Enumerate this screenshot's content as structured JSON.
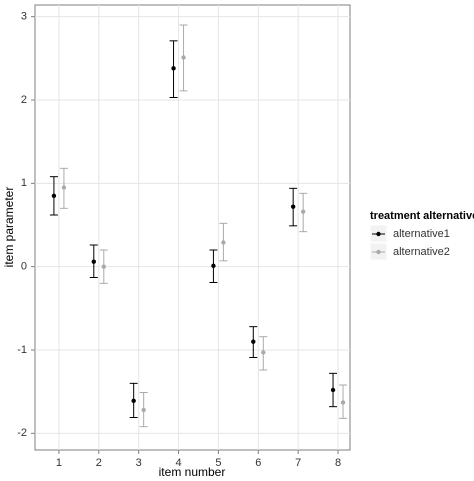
{
  "chart_data": {
    "type": "errorbar",
    "x_label": "item number",
    "y_label": "item parameter",
    "x": [
      1,
      2,
      3,
      4,
      5,
      6,
      7,
      8
    ],
    "xlim": [
      0.4,
      8.3
    ],
    "xticks": [
      1,
      2,
      3,
      4,
      5,
      6,
      7,
      8
    ],
    "ylim": [
      -2.2,
      3.14
    ],
    "yticks": [
      -2,
      -1,
      0,
      1,
      2,
      3
    ],
    "grid": true,
    "legend_title": "treatment alternative",
    "legend_position": "right",
    "series": [
      {
        "name": "alternative1",
        "color": "#000000",
        "values": [
          0.85,
          0.06,
          -1.61,
          2.38,
          0.01,
          -0.9,
          0.72,
          -1.48
        ],
        "lower": [
          0.62,
          -0.13,
          -1.81,
          2.03,
          -0.19,
          -1.09,
          0.49,
          -1.68
        ],
        "upper": [
          1.08,
          0.26,
          -1.4,
          2.71,
          0.2,
          -0.72,
          0.94,
          -1.28
        ]
      },
      {
        "name": "alternative2",
        "color": "#aaaaaa",
        "values": [
          0.95,
          0.0,
          -1.72,
          2.51,
          0.29,
          -1.03,
          0.66,
          -1.63
        ],
        "lower": [
          0.7,
          -0.2,
          -1.92,
          2.11,
          0.07,
          -1.24,
          0.42,
          -1.82
        ],
        "upper": [
          1.18,
          0.2,
          -1.51,
          2.9,
          0.52,
          -0.84,
          0.88,
          -1.42
        ]
      }
    ]
  }
}
